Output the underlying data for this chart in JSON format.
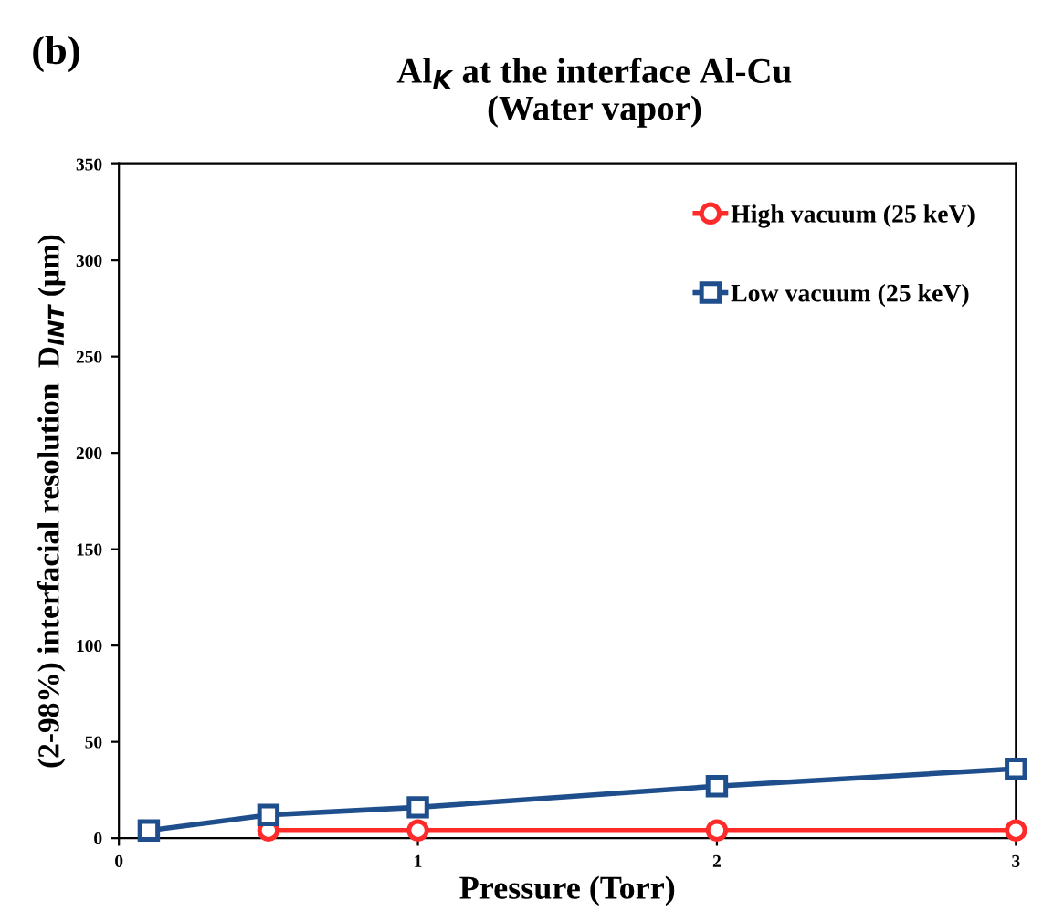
{
  "chart_data": {
    "type": "line",
    "title": "Al$_{K}$ at the interface Al-Cu\n(Water vapor)",
    "xlabel": "Pressure (Torr)",
    "ylabel": "(2-98%) interfacial resolution  D$_{INT}$ (µm)",
    "annotations": [
      "(b)"
    ],
    "x": [
      0.1,
      0.5,
      1,
      2,
      3
    ],
    "series": [
      {
        "name": "High vacuum (25 keV)",
        "color": "#ff2a2a",
        "marker": "circle",
        "values": [
          null,
          4,
          4,
          4,
          4
        ]
      },
      {
        "name": "Low vacuum (25 keV)",
        "color": "#1f4e8c",
        "marker": "square",
        "values": [
          4,
          12,
          16,
          27,
          36
        ]
      }
    ],
    "xlim": [
      0,
      3
    ],
    "xticks": [
      0,
      1,
      2,
      3
    ],
    "ylim": [
      0,
      350
    ],
    "yticks": [
      0,
      50,
      100,
      150,
      200,
      250,
      300,
      350
    ],
    "grid": false,
    "legend": "top right"
  }
}
